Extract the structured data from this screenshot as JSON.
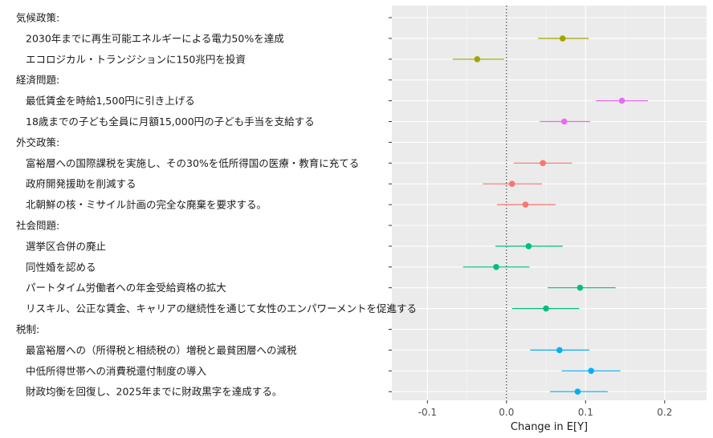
{
  "chart_data": {
    "type": "scatter",
    "xlabel": "Change in E[Y]",
    "xlim": [
      -0.145,
      0.253
    ],
    "xticks": [
      -0.1,
      0.0,
      0.1,
      0.2
    ],
    "xtick_labels": [
      "-0.1",
      "0.0",
      "0.1",
      "0.2"
    ],
    "reference_line": 0,
    "grid": true,
    "rows": [
      {
        "label": "気候政策:",
        "header": true
      },
      {
        "label": "2030年までに再生可能エネルギーによる電力50%を達成",
        "est": 0.071,
        "lo": 0.04,
        "hi": 0.104,
        "color": "#A3A500"
      },
      {
        "label": "エコロジカル・トランジションに150兆円を投資",
        "est": -0.037,
        "lo": -0.068,
        "hi": -0.003,
        "color": "#A3A500"
      },
      {
        "label": "経済問題:",
        "header": true
      },
      {
        "label": "最低賃金を時給1,500円に引き上げる",
        "est": 0.146,
        "lo": 0.113,
        "hi": 0.179,
        "color": "#E76BF3"
      },
      {
        "label": "18歳までの子ども全員に月額15,000円の子ども手当を支給する",
        "est": 0.073,
        "lo": 0.042,
        "hi": 0.106,
        "color": "#E76BF3"
      },
      {
        "label": "外交政策:",
        "header": true
      },
      {
        "label": "富裕層への国際課税を実施し、その30%を低所得国の医療・教育に充てる",
        "est": 0.046,
        "lo": 0.009,
        "hi": 0.083,
        "color": "#F8766D"
      },
      {
        "label": "政府開発援助を削減する",
        "est": 0.007,
        "lo": -0.03,
        "hi": 0.045,
        "color": "#F8766D"
      },
      {
        "label": "北朝鮮の核・ミサイル計画の完全な廃棄を要求する。",
        "est": 0.024,
        "lo": -0.012,
        "hi": 0.062,
        "color": "#F8766D"
      },
      {
        "label": "社会問題:",
        "header": true
      },
      {
        "label": "選挙区合併の廃止",
        "est": 0.028,
        "lo": -0.014,
        "hi": 0.071,
        "color": "#00BF7D"
      },
      {
        "label": "同性婚を認める",
        "est": -0.013,
        "lo": -0.055,
        "hi": 0.029,
        "color": "#00BF7D"
      },
      {
        "label": "パートタイム労働者への年金受給資格の拡大",
        "est": 0.093,
        "lo": 0.052,
        "hi": 0.138,
        "color": "#00BF7D"
      },
      {
        "label": "リスキル、公正な賃金、キャリアの継続性を通じて女性のエンパワーメントを促進する",
        "est": 0.05,
        "lo": 0.007,
        "hi": 0.092,
        "color": "#00BF7D"
      },
      {
        "label": "税制:",
        "header": true
      },
      {
        "label": "最富裕層への（所得税と相続税の）増税と最貧困層への減税",
        "est": 0.067,
        "lo": 0.03,
        "hi": 0.105,
        "color": "#00B0F6"
      },
      {
        "label": "中低所得世帯への消費税還付制度の導入",
        "est": 0.107,
        "lo": 0.07,
        "hi": 0.144,
        "color": "#00B0F6"
      },
      {
        "label": "財政均衡を回復し、2025年までに財政黒字を達成する。",
        "est": 0.09,
        "lo": 0.055,
        "hi": 0.128,
        "color": "#00B0F6"
      }
    ]
  }
}
